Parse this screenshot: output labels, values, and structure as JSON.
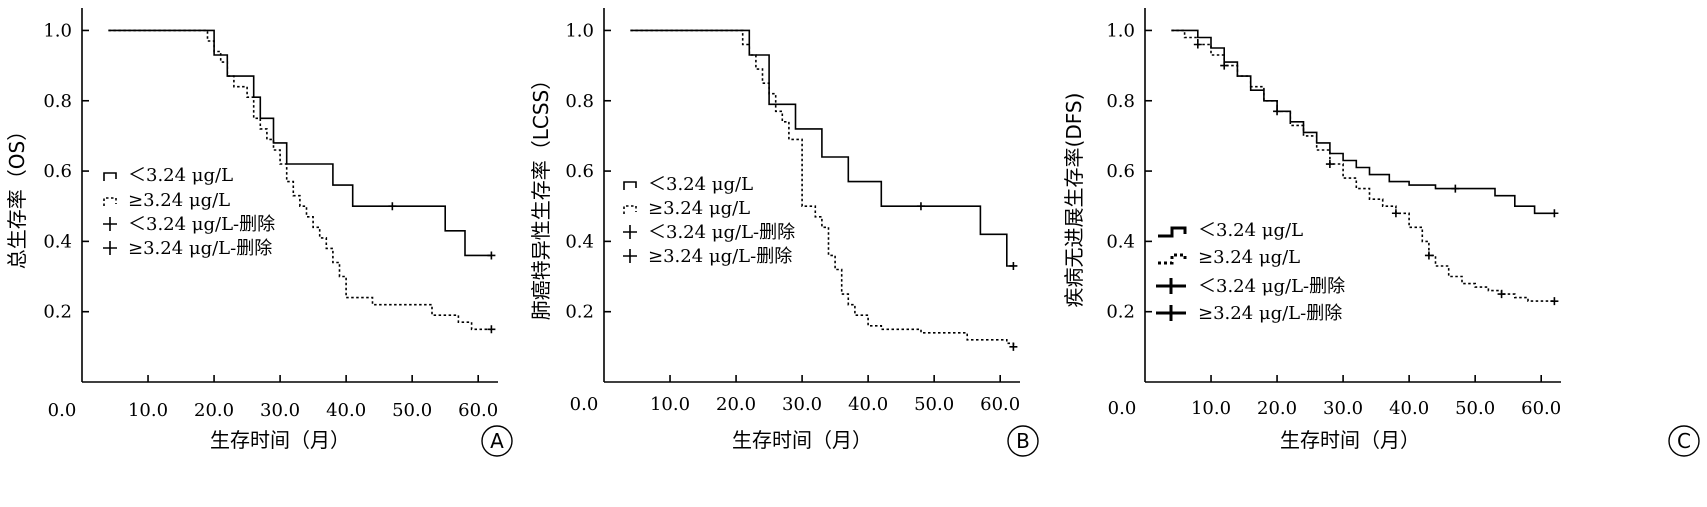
{
  "chart_data": [
    {
      "panel": "A",
      "type": "line",
      "xlabel": "生存时间（月）",
      "ylabel": "总生存率（OS）",
      "xlim": [
        0,
        63
      ],
      "ylim": [
        0.0,
        1.0
      ],
      "xticks": [
        10,
        20,
        30,
        40,
        50,
        60
      ],
      "xtick_labels": [
        "10.0",
        "20.0",
        "30.0",
        "40.0",
        "50.0",
        "60.0"
      ],
      "x_origin_label": "0.0",
      "yticks": [
        0.2,
        0.4,
        0.6,
        0.8,
        1.0
      ],
      "ytick_labels": [
        "0.2",
        "0.4",
        "0.6",
        "0.8",
        "1.0"
      ],
      "legend": [
        "＜3.24 μg/L",
        "≥3.24 μg/L",
        "＜3.24 μg/L-删除",
        "≥3.24 μg/L-删除"
      ],
      "series": [
        {
          "name": "＜3.24 μg/L",
          "style": "solid",
          "x": [
            4,
            18,
            20,
            22,
            26,
            27,
            29,
            31,
            33,
            38,
            41,
            47,
            55,
            58,
            62
          ],
          "y": [
            1.0,
            1.0,
            0.93,
            0.87,
            0.81,
            0.75,
            0.68,
            0.62,
            0.62,
            0.56,
            0.5,
            0.5,
            0.43,
            0.36,
            0.36
          ],
          "censored": [
            [
              47,
              0.5
            ],
            [
              62,
              0.36
            ]
          ]
        },
        {
          "name": "≥3.24 μg/L",
          "style": "dotted",
          "x": [
            4,
            18,
            19,
            20,
            21,
            22,
            23,
            25,
            26,
            27,
            28,
            29,
            30,
            31,
            32,
            33,
            34,
            35,
            36,
            37,
            38,
            39,
            40,
            42,
            44,
            47,
            51,
            53,
            56,
            57,
            58,
            59,
            60,
            62
          ],
          "y": [
            1.0,
            1.0,
            0.97,
            0.94,
            0.91,
            0.87,
            0.84,
            0.81,
            0.75,
            0.72,
            0.69,
            0.66,
            0.62,
            0.57,
            0.53,
            0.5,
            0.47,
            0.44,
            0.41,
            0.38,
            0.34,
            0.3,
            0.24,
            0.24,
            0.22,
            0.22,
            0.22,
            0.19,
            0.19,
            0.17,
            0.17,
            0.15,
            0.15,
            0.15
          ],
          "censored": [
            [
              62,
              0.15
            ]
          ]
        }
      ],
      "annotation": "A"
    },
    {
      "panel": "B",
      "type": "line",
      "xlabel": "生存时间（月）",
      "ylabel": "肺癌特异性生存率（LCSS）",
      "xlim": [
        0,
        63
      ],
      "ylim": [
        0.0,
        1.0
      ],
      "xticks": [
        10,
        20,
        30,
        40,
        50,
        60
      ],
      "xtick_labels": [
        "10.0",
        "20.0",
        "30.0",
        "40.0",
        "50.0",
        "60.0"
      ],
      "x_origin_label": "0.0",
      "yticks": [
        0.2,
        0.4,
        0.6,
        0.8,
        1.0
      ],
      "ytick_labels": [
        "0.2",
        "0.4",
        "0.6",
        "0.8",
        "1.0"
      ],
      "legend": [
        "＜3.24 μg/L",
        "≥3.24 μg/L",
        "＜3.24 μg/L-删除",
        "≥3.24 μg/L-删除"
      ],
      "series": [
        {
          "name": "＜3.24 μg/L",
          "style": "solid",
          "x": [
            4,
            19,
            22,
            25,
            29,
            33,
            37,
            42,
            48,
            57,
            61,
            62
          ],
          "y": [
            1.0,
            1.0,
            0.93,
            0.79,
            0.72,
            0.64,
            0.57,
            0.5,
            0.5,
            0.42,
            0.33,
            0.33
          ],
          "censored": [
            [
              48,
              0.5
            ],
            [
              62,
              0.33
            ]
          ]
        },
        {
          "name": "≥3.24 μg/L",
          "style": "dotted",
          "x": [
            4,
            19,
            21,
            22,
            23,
            24,
            25,
            26,
            27,
            28,
            30,
            32,
            33,
            34,
            35,
            36,
            37,
            38,
            40,
            42,
            45,
            48,
            50,
            55,
            57,
            58,
            61,
            62
          ],
          "y": [
            1.0,
            1.0,
            0.96,
            0.93,
            0.89,
            0.85,
            0.82,
            0.77,
            0.74,
            0.69,
            0.5,
            0.47,
            0.44,
            0.36,
            0.32,
            0.25,
            0.22,
            0.19,
            0.16,
            0.15,
            0.15,
            0.14,
            0.14,
            0.12,
            0.12,
            0.12,
            0.11,
            0.1
          ],
          "censored": [
            [
              62,
              0.1
            ]
          ]
        }
      ],
      "annotation": "B"
    },
    {
      "panel": "C",
      "type": "line",
      "xlabel": "生存时间（月）",
      "ylabel": "疾病无进展生存率(DFS)",
      "xlim": [
        0,
        63
      ],
      "ylim": [
        0.0,
        1.0
      ],
      "xticks": [
        10,
        20,
        30,
        40,
        50,
        60
      ],
      "xtick_labels": [
        "10.0",
        "20.0",
        "30.0",
        "40.0",
        "50.0",
        "60.0"
      ],
      "x_origin_label": "0.0",
      "yticks": [
        0.2,
        0.4,
        0.6,
        0.8,
        1.0
      ],
      "ytick_labels": [
        "0.2",
        "0.4",
        "0.6",
        "0.8",
        "1.0"
      ],
      "legend": [
        "＜3.24 μg/L",
        "≥3.24 μg/L",
        "＜3.24 μg/L-删除",
        "≥3.24 μg/L-删除"
      ],
      "series": [
        {
          "name": "＜3.24 μg/L",
          "style": "solid",
          "x": [
            4,
            8,
            10,
            12,
            14,
            16,
            18,
            20,
            22,
            24,
            26,
            28,
            30,
            32,
            34,
            37,
            40,
            44,
            47,
            50,
            53,
            56,
            59,
            62
          ],
          "y": [
            1.0,
            0.98,
            0.95,
            0.91,
            0.87,
            0.83,
            0.8,
            0.77,
            0.74,
            0.71,
            0.68,
            0.65,
            0.63,
            0.61,
            0.59,
            0.57,
            0.56,
            0.55,
            0.55,
            0.55,
            0.53,
            0.5,
            0.48,
            0.48
          ],
          "censored": [
            [
              47,
              0.55
            ],
            [
              62,
              0.48
            ]
          ]
        },
        {
          "name": "≥3.24 μg/L",
          "style": "dotted",
          "x": [
            4,
            6,
            8,
            10,
            12,
            14,
            16,
            18,
            20,
            22,
            24,
            26,
            28,
            30,
            32,
            34,
            36,
            38,
            40,
            42,
            43,
            44,
            46,
            48,
            50,
            52,
            54,
            56,
            58,
            60,
            62
          ],
          "y": [
            1.0,
            0.98,
            0.96,
            0.93,
            0.9,
            0.87,
            0.84,
            0.8,
            0.77,
            0.73,
            0.7,
            0.66,
            0.62,
            0.58,
            0.55,
            0.52,
            0.5,
            0.48,
            0.44,
            0.4,
            0.36,
            0.33,
            0.3,
            0.28,
            0.27,
            0.26,
            0.25,
            0.24,
            0.23,
            0.23,
            0.23
          ],
          "censored": [
            [
              8,
              0.96
            ],
            [
              12,
              0.9
            ],
            [
              20,
              0.77
            ],
            [
              28,
              0.62
            ],
            [
              38,
              0.48
            ],
            [
              43,
              0.36
            ],
            [
              54,
              0.25
            ],
            [
              62,
              0.23
            ]
          ]
        }
      ],
      "annotation": "C"
    }
  ]
}
